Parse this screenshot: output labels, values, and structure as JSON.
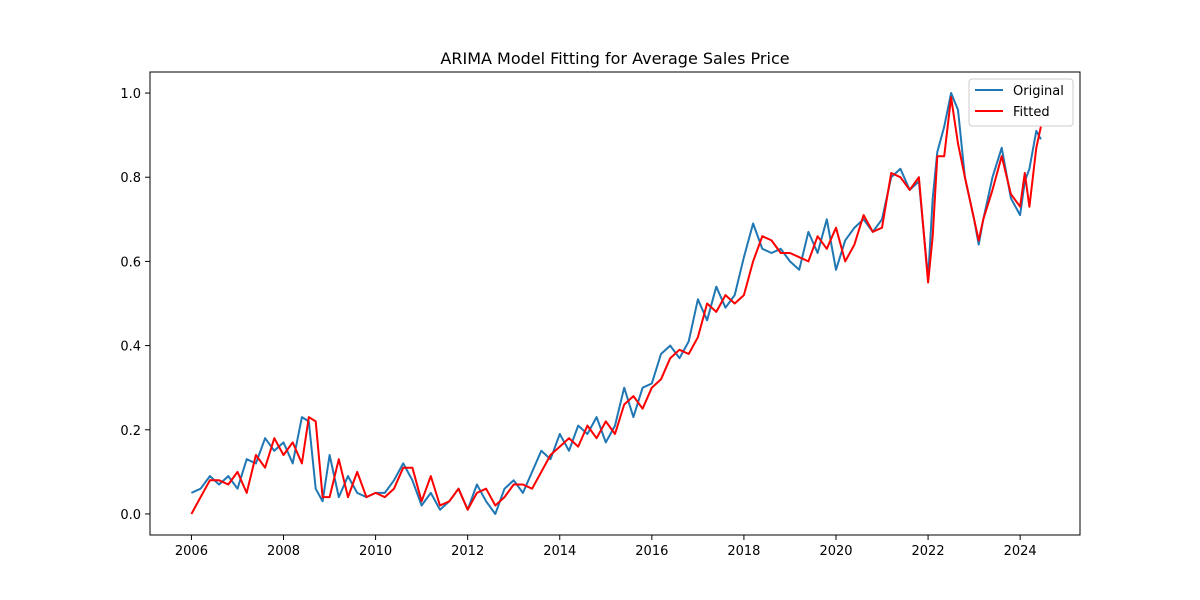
{
  "chart_data": {
    "type": "line",
    "title": "ARIMA Model Fitting for Average Sales Price",
    "xlabel": "",
    "ylabel": "",
    "xlim": [
      2005.1,
      2025.3
    ],
    "ylim": [
      -0.05,
      1.05
    ],
    "x_ticks": [
      2006,
      2008,
      2010,
      2012,
      2014,
      2016,
      2018,
      2020,
      2022,
      2024
    ],
    "x_tick_labels": [
      "2006",
      "2008",
      "2010",
      "2012",
      "2014",
      "2016",
      "2018",
      "2020",
      "2022",
      "2024"
    ],
    "y_ticks": [
      0.0,
      0.2,
      0.4,
      0.6,
      0.8,
      1.0
    ],
    "y_tick_labels": [
      "0.0",
      "0.2",
      "0.4",
      "0.6",
      "0.8",
      "1.0"
    ],
    "grid": false,
    "legend_position": "top-right",
    "series": [
      {
        "name": "Original",
        "color": "#1f77b4",
        "x": [
          2006.0,
          2006.2,
          2006.4,
          2006.6,
          2006.8,
          2007.0,
          2007.2,
          2007.4,
          2007.6,
          2007.8,
          2008.0,
          2008.2,
          2008.4,
          2008.55,
          2008.7,
          2008.85,
          2009.0,
          2009.2,
          2009.4,
          2009.6,
          2009.8,
          2010.0,
          2010.2,
          2010.4,
          2010.6,
          2010.8,
          2011.0,
          2011.2,
          2011.4,
          2011.6,
          2011.8,
          2012.0,
          2012.2,
          2012.4,
          2012.6,
          2012.8,
          2013.0,
          2013.2,
          2013.4,
          2013.6,
          2013.8,
          2014.0,
          2014.2,
          2014.4,
          2014.6,
          2014.8,
          2015.0,
          2015.2,
          2015.4,
          2015.6,
          2015.8,
          2016.0,
          2016.2,
          2016.4,
          2016.6,
          2016.8,
          2017.0,
          2017.2,
          2017.4,
          2017.6,
          2017.8,
          2018.0,
          2018.2,
          2018.4,
          2018.6,
          2018.8,
          2019.0,
          2019.2,
          2019.4,
          2019.6,
          2019.8,
          2020.0,
          2020.2,
          2020.4,
          2020.6,
          2020.8,
          2021.0,
          2021.2,
          2021.4,
          2021.6,
          2021.8,
          2022.0,
          2022.1,
          2022.2,
          2022.35,
          2022.5,
          2022.65,
          2022.8,
          2023.0,
          2023.1,
          2023.2,
          2023.4,
          2023.6,
          2023.8,
          2024.0,
          2024.1,
          2024.2,
          2024.35,
          2024.45
        ],
        "y": [
          0.05,
          0.06,
          0.09,
          0.07,
          0.09,
          0.06,
          0.13,
          0.12,
          0.18,
          0.15,
          0.17,
          0.12,
          0.23,
          0.22,
          0.06,
          0.03,
          0.14,
          0.04,
          0.09,
          0.05,
          0.04,
          0.05,
          0.05,
          0.08,
          0.12,
          0.08,
          0.02,
          0.05,
          0.01,
          0.03,
          0.06,
          0.01,
          0.07,
          0.03,
          0.0,
          0.06,
          0.08,
          0.05,
          0.1,
          0.15,
          0.13,
          0.19,
          0.15,
          0.21,
          0.19,
          0.23,
          0.17,
          0.21,
          0.3,
          0.23,
          0.3,
          0.31,
          0.38,
          0.4,
          0.37,
          0.41,
          0.51,
          0.46,
          0.54,
          0.49,
          0.52,
          0.61,
          0.69,
          0.63,
          0.62,
          0.63,
          0.6,
          0.58,
          0.67,
          0.62,
          0.7,
          0.58,
          0.65,
          0.68,
          0.7,
          0.67,
          0.7,
          0.8,
          0.82,
          0.77,
          0.79,
          0.56,
          0.75,
          0.86,
          0.92,
          1.0,
          0.96,
          0.8,
          0.7,
          0.64,
          0.7,
          0.8,
          0.87,
          0.75,
          0.71,
          0.79,
          0.82,
          0.91,
          0.89
        ]
      },
      {
        "name": "Fitted",
        "color": "#ff0000",
        "x": [
          2006.0,
          2006.2,
          2006.4,
          2006.6,
          2006.8,
          2007.0,
          2007.2,
          2007.4,
          2007.6,
          2007.8,
          2008.0,
          2008.2,
          2008.4,
          2008.55,
          2008.7,
          2008.85,
          2009.0,
          2009.2,
          2009.4,
          2009.6,
          2009.8,
          2010.0,
          2010.2,
          2010.4,
          2010.6,
          2010.8,
          2011.0,
          2011.2,
          2011.4,
          2011.6,
          2011.8,
          2012.0,
          2012.2,
          2012.4,
          2012.6,
          2012.8,
          2013.0,
          2013.2,
          2013.4,
          2013.6,
          2013.8,
          2014.0,
          2014.2,
          2014.4,
          2014.6,
          2014.8,
          2015.0,
          2015.2,
          2015.4,
          2015.6,
          2015.8,
          2016.0,
          2016.2,
          2016.4,
          2016.6,
          2016.8,
          2017.0,
          2017.2,
          2017.4,
          2017.6,
          2017.8,
          2018.0,
          2018.2,
          2018.4,
          2018.6,
          2018.8,
          2019.0,
          2019.2,
          2019.4,
          2019.6,
          2019.8,
          2020.0,
          2020.2,
          2020.4,
          2020.6,
          2020.8,
          2021.0,
          2021.2,
          2021.4,
          2021.6,
          2021.8,
          2022.0,
          2022.1,
          2022.2,
          2022.35,
          2022.5,
          2022.65,
          2022.8,
          2023.0,
          2023.1,
          2023.2,
          2023.4,
          2023.6,
          2023.8,
          2024.0,
          2024.1,
          2024.2,
          2024.35,
          2024.45
        ],
        "y": [
          0.0,
          0.04,
          0.08,
          0.08,
          0.07,
          0.1,
          0.05,
          0.14,
          0.11,
          0.18,
          0.14,
          0.17,
          0.12,
          0.23,
          0.22,
          0.04,
          0.04,
          0.13,
          0.04,
          0.1,
          0.04,
          0.05,
          0.04,
          0.06,
          0.11,
          0.11,
          0.03,
          0.09,
          0.02,
          0.03,
          0.06,
          0.01,
          0.05,
          0.06,
          0.02,
          0.04,
          0.07,
          0.07,
          0.06,
          0.1,
          0.14,
          0.16,
          0.18,
          0.16,
          0.21,
          0.18,
          0.22,
          0.19,
          0.26,
          0.28,
          0.25,
          0.3,
          0.32,
          0.37,
          0.39,
          0.38,
          0.42,
          0.5,
          0.48,
          0.52,
          0.5,
          0.52,
          0.6,
          0.66,
          0.65,
          0.62,
          0.62,
          0.61,
          0.6,
          0.66,
          0.63,
          0.68,
          0.6,
          0.64,
          0.71,
          0.67,
          0.68,
          0.81,
          0.8,
          0.77,
          0.8,
          0.55,
          0.66,
          0.85,
          0.85,
          0.99,
          0.88,
          0.8,
          0.7,
          0.65,
          0.7,
          0.77,
          0.85,
          0.76,
          0.73,
          0.81,
          0.73,
          0.87,
          0.92
        ]
      }
    ]
  }
}
